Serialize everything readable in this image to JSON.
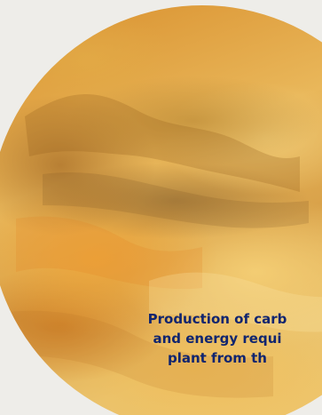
{
  "caption": {
    "lines": [
      "Production of carb",
      "and energy requi",
      "plant from th"
    ]
  },
  "colors": {
    "background": "#eeede9",
    "circle_base": "#e3a54b",
    "caption_text": "#10256f"
  }
}
